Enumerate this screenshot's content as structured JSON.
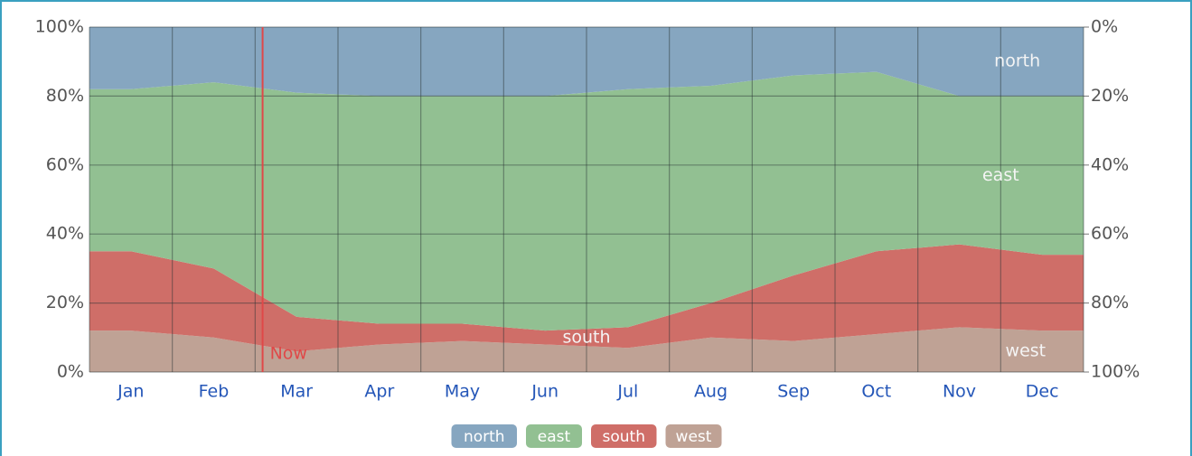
{
  "chart_data": {
    "type": "stacked_area",
    "categories": [
      "Jan",
      "Feb",
      "Mar",
      "Apr",
      "May",
      "Jun",
      "Jul",
      "Aug",
      "Sep",
      "Oct",
      "Nov",
      "Dec"
    ],
    "series": [
      {
        "name": "west",
        "color": "#bfa295",
        "values": [
          12,
          10,
          6,
          8,
          9,
          8,
          7,
          10,
          9,
          11,
          13,
          12
        ]
      },
      {
        "name": "south",
        "color": "#cf6e68",
        "values": [
          23,
          20,
          10,
          6,
          5,
          4,
          6,
          10,
          19,
          24,
          24,
          22
        ]
      },
      {
        "name": "east",
        "color": "#92c092",
        "values": [
          47,
          54,
          65,
          66,
          66,
          68,
          69,
          63,
          58,
          52,
          43,
          46
        ]
      },
      {
        "name": "north",
        "color": "#86a6c0",
        "values": [
          18,
          16,
          19,
          20,
          20,
          20,
          18,
          17,
          14,
          13,
          20,
          20
        ]
      }
    ],
    "ylim": [
      0,
      100
    ],
    "yticks": [
      {
        "value": 0,
        "label": "0%"
      },
      {
        "value": 20,
        "label": "20%"
      },
      {
        "value": 40,
        "label": "40%"
      },
      {
        "value": 60,
        "label": "60%"
      },
      {
        "value": 80,
        "label": "80%"
      },
      {
        "value": 100,
        "label": "100%"
      }
    ],
    "y2lim": [
      100,
      0
    ],
    "y2ticks": [
      {
        "value": 0,
        "label": "0%"
      },
      {
        "value": 20,
        "label": "20%"
      },
      {
        "value": 40,
        "label": "40%"
      },
      {
        "value": 60,
        "label": "60%"
      },
      {
        "value": 80,
        "label": "80%"
      },
      {
        "value": 100,
        "label": "100%"
      }
    ],
    "grid": true,
    "now": {
      "label": "Now",
      "x": 2.09,
      "color": "#e04848"
    }
  }
}
